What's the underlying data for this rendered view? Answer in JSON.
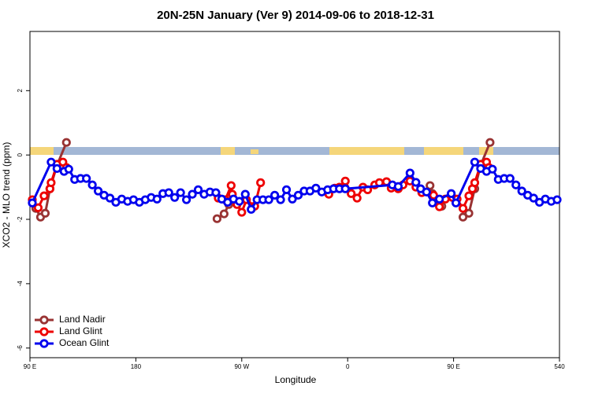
{
  "chart_data": {
    "type": "line",
    "title": "20N-25N January (Ver 9)   2014-09-06 to 2018-12-31",
    "x_label": "Longitude",
    "y_label": "XCO2 - MLO trend (ppm)",
    "xlim": [
      90,
      540
    ],
    "xticks": [
      {
        "value": 90,
        "label": "90 E"
      },
      180,
      {
        "value": 270,
        "label": "90 W"
      },
      {
        "value": 360,
        "label": "0"
      },
      {
        "value": 450,
        "label": "90 E"
      },
      540
    ],
    "ylim": [
      -6.3,
      3.84
    ],
    "yticks": [
      -6,
      -4,
      -2,
      0,
      2
    ],
    "legend": "bottom-left",
    "series": [
      {
        "name": "Land Nadir",
        "color": "#993333",
        "x": [
          95,
          99,
          103,
          107,
          113,
          121,
          null,
          249,
          255,
          259,
          null,
          430,
          432,
          440,
          null,
          458,
          463,
          468,
          473,
          481
        ],
        "values": [
          -1.66,
          -1.93,
          -1.81,
          -1.05,
          -0.32,
          0.39,
          null,
          -1.98,
          -1.83,
          -1.54,
          null,
          -0.95,
          -1.2,
          -1.59,
          null,
          -1.93,
          -1.81,
          -1.05,
          -0.32,
          0.39
        ]
      },
      {
        "name": "Land Glint",
        "color": "#ee0000",
        "x": [
          92,
          97,
          102,
          107,
          108,
          113,
          118,
          121,
          null,
          250,
          256,
          261,
          262,
          266,
          270,
          274,
          281,
          286,
          null,
          344,
          349,
          353,
          358,
          363,
          368,
          373,
          377,
          383,
          387,
          393,
          397,
          403,
          407,
          413,
          418,
          423,
          433,
          438,
          443,
          449,
          453,
          458,
          463,
          466,
          468,
          473,
          478,
          480
        ],
        "values": [
          -1.39,
          -1.64,
          -1.27,
          -1.05,
          -0.86,
          -0.29,
          -0.22,
          -0.39,
          null,
          -1.34,
          -1.39,
          -0.95,
          -1.22,
          -1.54,
          -1.78,
          -1.39,
          -1.59,
          -0.86,
          null,
          -1.22,
          -1.03,
          -1.0,
          -0.81,
          -1.2,
          -1.34,
          -1.0,
          -1.08,
          -0.93,
          -0.86,
          -0.83,
          -1.03,
          -1.05,
          -0.93,
          -0.81,
          -1.0,
          -1.17,
          -1.25,
          -1.61,
          -1.37,
          -1.32,
          -1.37,
          -1.66,
          -1.27,
          -1.05,
          -0.86,
          -0.29,
          -0.22,
          -0.39
        ]
      },
      {
        "name": "Ocean Glint",
        "color": "#0000ee",
        "x": [
          92,
          108,
          113,
          119,
          123,
          128,
          133,
          138,
          143,
          148,
          153,
          158,
          163,
          168,
          173,
          178,
          183,
          188,
          193,
          198,
          203,
          208,
          213,
          218,
          223,
          228,
          233,
          238,
          243,
          248,
          253,
          258,
          263,
          268,
          273,
          278,
          283,
          288,
          293,
          298,
          303,
          308,
          313,
          318,
          323,
          328,
          333,
          338,
          343,
          348,
          353,
          358,
          398,
          403,
          413,
          418,
          422,
          427,
          432,
          438,
          448,
          452,
          468,
          473,
          478,
          483,
          488,
          493,
          498,
          503,
          508,
          513,
          518,
          523,
          528,
          533,
          538
        ],
        "values": [
          -1.49,
          -0.22,
          -0.42,
          -0.51,
          -0.44,
          -0.76,
          -0.73,
          -0.73,
          -0.93,
          -1.12,
          -1.25,
          -1.34,
          -1.47,
          -1.37,
          -1.44,
          -1.39,
          -1.47,
          -1.39,
          -1.32,
          -1.37,
          -1.2,
          -1.17,
          -1.32,
          -1.17,
          -1.39,
          -1.22,
          -1.08,
          -1.22,
          -1.15,
          -1.17,
          -1.37,
          -1.47,
          -1.37,
          -1.44,
          -1.22,
          -1.69,
          -1.39,
          -1.39,
          -1.39,
          -1.25,
          -1.39,
          -1.08,
          -1.37,
          -1.25,
          -1.12,
          -1.12,
          -1.03,
          -1.15,
          -1.08,
          -1.05,
          -1.05,
          -1.05,
          -0.93,
          -0.98,
          -0.56,
          -0.85,
          -1.05,
          -1.15,
          -1.49,
          -1.37,
          -1.2,
          -1.49,
          -0.22,
          -0.42,
          -0.51,
          -0.44,
          -0.76,
          -0.73,
          -0.73,
          -0.93,
          -1.12,
          -1.25,
          -1.34,
          -1.47,
          -1.37,
          -1.44,
          -1.39
        ]
      }
    ]
  }
}
